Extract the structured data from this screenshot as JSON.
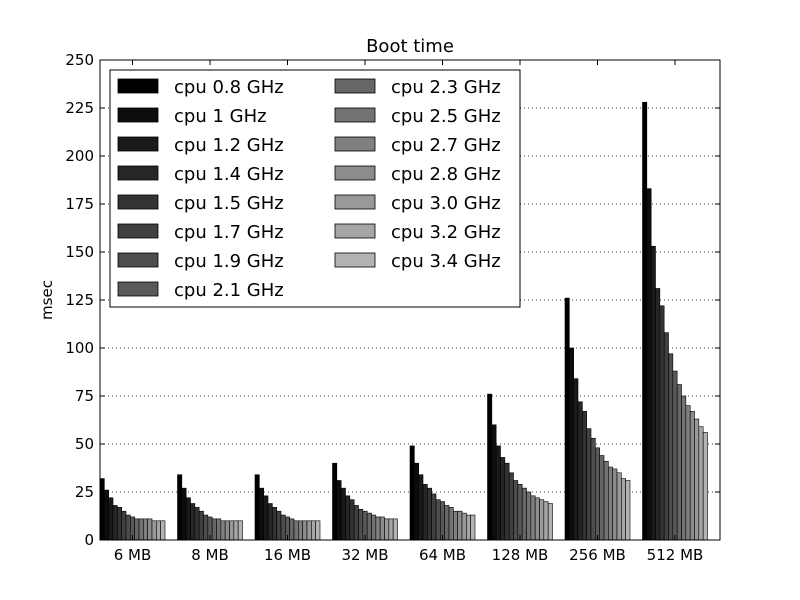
{
  "chart_data": {
    "type": "bar",
    "title": "Boot time",
    "xlabel": "",
    "ylabel": "msec",
    "ylim": [
      0,
      250
    ],
    "yticks": [
      0,
      25,
      50,
      75,
      100,
      125,
      150,
      175,
      200,
      225,
      250
    ],
    "grid": "y-dotted",
    "legend_placement": "top-left",
    "legend_columns": 2,
    "categories": [
      "6 MB",
      "8 MB",
      "16 MB",
      "32 MB",
      "64 MB",
      "128 MB",
      "256 MB",
      "512 MB"
    ],
    "series": [
      {
        "name": "cpu 0.8 GHz",
        "color": "#000000",
        "values": [
          32,
          34,
          34,
          40,
          49,
          76,
          126,
          228
        ]
      },
      {
        "name": "cpu 1 GHz",
        "color": "#0d0d0d",
        "values": [
          26,
          27,
          27,
          31,
          40,
          60,
          100,
          183
        ]
      },
      {
        "name": "cpu 1.2 GHz",
        "color": "#1a1a1a",
        "values": [
          22,
          22,
          23,
          27,
          34,
          49,
          84,
          153
        ]
      },
      {
        "name": "cpu 1.4 GHz",
        "color": "#262626",
        "values": [
          18,
          19,
          19,
          23,
          29,
          43,
          72,
          131
        ]
      },
      {
        "name": "cpu 1.5 GHz",
        "color": "#333333",
        "values": [
          17,
          17,
          17,
          21,
          27,
          40,
          67,
          122
        ]
      },
      {
        "name": "cpu 1.7 GHz",
        "color": "#404040",
        "values": [
          15,
          15,
          15,
          18,
          24,
          35,
          58,
          108
        ]
      },
      {
        "name": "cpu 1.9 GHz",
        "color": "#4d4d4d",
        "values": [
          13,
          13,
          13,
          16,
          21,
          31,
          53,
          97
        ]
      },
      {
        "name": "cpu 2.1 GHz",
        "color": "#595959",
        "values": [
          12,
          12,
          12,
          15,
          20,
          29,
          48,
          88
        ]
      },
      {
        "name": "cpu 2.3 GHz",
        "color": "#666666",
        "values": [
          11,
          11,
          11,
          14,
          18,
          27,
          44,
          81
        ]
      },
      {
        "name": "cpu 2.5 GHz",
        "color": "#737373",
        "values": [
          11,
          11,
          10,
          13,
          17,
          25,
          41,
          75
        ]
      },
      {
        "name": "cpu 2.7 GHz",
        "color": "#808080",
        "values": [
          11,
          10,
          10,
          12,
          15,
          23,
          38,
          70
        ]
      },
      {
        "name": "cpu 2.8 GHz",
        "color": "#8c8c8c",
        "values": [
          11,
          10,
          10,
          12,
          15,
          22,
          37,
          67
        ]
      },
      {
        "name": "cpu 3.0 GHz",
        "color": "#999999",
        "values": [
          10,
          10,
          10,
          11,
          14,
          21,
          35,
          63
        ]
      },
      {
        "name": "cpu 3.2 GHz",
        "color": "#a6a6a6",
        "values": [
          10,
          10,
          10,
          11,
          13,
          20,
          32,
          59
        ]
      },
      {
        "name": "cpu 3.4 GHz",
        "color": "#b3b3b3",
        "values": [
          10,
          10,
          10,
          11,
          13,
          19,
          31,
          56
        ]
      }
    ]
  }
}
